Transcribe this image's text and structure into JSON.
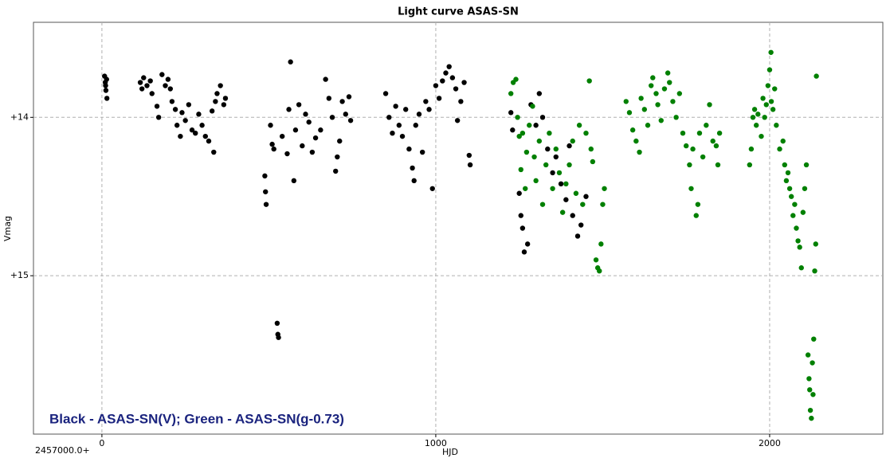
{
  "chart_data": {
    "type": "scatter",
    "title": "Light curve ASAS-SN",
    "x_label": "HJD",
    "y_label": "Vmag",
    "x_offset_label": "2457000.0+",
    "annotation": "Black - ASAS-SN(V); Green - ASAS-SN(g-0.73)",
    "xlim": [
      -205,
      2339
    ],
    "xticks": [
      0,
      1000,
      2000
    ],
    "ylim": [
      13.4,
      16.0
    ],
    "y_reversed": true,
    "yticks": [
      {
        "value": 14,
        "label": "+14"
      },
      {
        "value": 15,
        "label": "+15"
      }
    ],
    "grid": true,
    "series": [
      {
        "color": "#000000",
        "x": [
          8,
          10,
          12,
          15,
          14,
          11,
          115,
          120,
          125,
          135,
          145,
          150,
          165,
          170,
          180,
          190,
          198,
          205,
          210,
          220,
          225,
          235,
          240,
          250,
          260,
          270,
          280,
          290,
          300,
          310,
          320,
          330,
          335,
          340,
          345,
          355,
          365,
          370,
          488,
          490,
          492,
          505,
          510,
          515,
          525,
          527,
          529,
          540,
          555,
          560,
          565,
          575,
          580,
          590,
          600,
          610,
          620,
          630,
          640,
          655,
          670,
          680,
          690,
          700,
          705,
          712,
          720,
          730,
          740,
          745,
          850,
          860,
          870,
          880,
          890,
          900,
          910,
          920,
          930,
          935,
          940,
          950,
          960,
          970,
          980,
          990,
          1000,
          1010,
          1020,
          1030,
          1040,
          1050,
          1060,
          1065,
          1075,
          1085,
          1100,
          1103,
          1225,
          1230,
          1250,
          1255,
          1260,
          1265,
          1275,
          1285,
          1300,
          1310,
          1320,
          1335,
          1350,
          1360,
          1375,
          1390,
          1400,
          1410,
          1425,
          1435,
          1450
        ],
        "values": [
          13.74,
          13.78,
          13.83,
          13.88,
          13.76,
          13.8,
          13.78,
          13.82,
          13.75,
          13.8,
          13.77,
          13.85,
          13.93,
          14.0,
          13.73,
          13.8,
          13.76,
          13.82,
          13.9,
          13.95,
          14.05,
          14.12,
          13.97,
          14.02,
          13.92,
          14.08,
          14.1,
          13.98,
          14.05,
          14.12,
          14.15,
          13.96,
          14.22,
          13.9,
          13.85,
          13.8,
          13.92,
          13.88,
          14.37,
          14.47,
          14.55,
          14.05,
          14.17,
          14.2,
          15.3,
          15.37,
          15.39,
          14.12,
          14.23,
          13.95,
          13.65,
          14.4,
          14.08,
          13.92,
          14.18,
          13.98,
          14.03,
          14.22,
          14.13,
          14.08,
          13.76,
          13.88,
          14.0,
          14.34,
          14.25,
          14.15,
          13.9,
          13.98,
          13.87,
          14.02,
          13.85,
          14.0,
          14.1,
          13.93,
          14.05,
          14.12,
          13.95,
          14.2,
          14.32,
          14.4,
          14.05,
          13.98,
          14.22,
          13.9,
          13.95,
          14.45,
          13.8,
          13.88,
          13.77,
          13.72,
          13.68,
          13.75,
          13.82,
          14.02,
          13.9,
          13.78,
          14.24,
          14.3,
          13.97,
          14.08,
          14.48,
          14.62,
          14.7,
          14.85,
          14.8,
          13.92,
          14.05,
          13.85,
          14.0,
          14.2,
          14.35,
          14.25,
          14.42,
          14.52,
          14.18,
          14.62,
          14.75,
          14.68,
          14.5
        ]
      },
      {
        "color": "#008000",
        "x": [
          1225,
          1232,
          1240,
          1245,
          1250,
          1255,
          1260,
          1268,
          1272,
          1280,
          1290,
          1295,
          1300,
          1310,
          1320,
          1330,
          1340,
          1350,
          1360,
          1370,
          1380,
          1390,
          1400,
          1410,
          1420,
          1430,
          1440,
          1450,
          1460,
          1465,
          1470,
          1480,
          1485,
          1490,
          1495,
          1500,
          1505,
          1570,
          1580,
          1590,
          1600,
          1610,
          1615,
          1625,
          1635,
          1645,
          1650,
          1660,
          1665,
          1675,
          1685,
          1695,
          1700,
          1710,
          1720,
          1730,
          1740,
          1750,
          1760,
          1765,
          1770,
          1780,
          1785,
          1790,
          1800,
          1810,
          1820,
          1830,
          1840,
          1845,
          1850,
          1940,
          1945,
          1950,
          1955,
          1960,
          1965,
          1975,
          1980,
          1985,
          1990,
          1995,
          2000,
          2004,
          2005,
          2010,
          2015,
          2020,
          2030,
          2040,
          2045,
          2050,
          2055,
          2060,
          2065,
          2070,
          2075,
          2080,
          2085,
          2090,
          2095,
          2100,
          2105,
          2110,
          2115,
          2118,
          2120,
          2122,
          2125,
          2128,
          2130,
          2132,
          2135,
          2138,
          2140
        ],
        "values": [
          13.85,
          13.78,
          13.76,
          14.0,
          14.12,
          14.33,
          14.1,
          14.45,
          14.22,
          14.05,
          13.93,
          14.25,
          14.4,
          14.15,
          14.55,
          14.3,
          14.1,
          14.45,
          14.2,
          14.35,
          14.6,
          14.42,
          14.3,
          14.15,
          14.48,
          14.05,
          14.55,
          14.1,
          13.77,
          14.2,
          14.28,
          14.9,
          14.95,
          14.97,
          14.8,
          14.55,
          14.45,
          13.9,
          13.97,
          14.08,
          14.15,
          14.22,
          13.88,
          13.95,
          14.05,
          13.8,
          13.75,
          13.85,
          13.92,
          14.02,
          13.82,
          13.72,
          13.78,
          13.9,
          14.0,
          13.85,
          14.1,
          14.18,
          14.3,
          14.45,
          14.2,
          14.62,
          14.55,
          14.1,
          14.25,
          14.05,
          13.92,
          14.15,
          14.18,
          14.3,
          14.1,
          14.3,
          14.2,
          14.0,
          13.95,
          14.05,
          13.98,
          14.12,
          13.88,
          14.0,
          13.92,
          13.8,
          13.7,
          13.59,
          13.9,
          13.95,
          13.82,
          14.05,
          14.2,
          14.15,
          14.3,
          14.4,
          14.35,
          14.45,
          14.5,
          14.62,
          14.55,
          14.7,
          14.78,
          14.82,
          14.95,
          14.6,
          14.45,
          14.3,
          15.5,
          15.65,
          15.72,
          15.85,
          15.9,
          15.55,
          15.75,
          15.4,
          14.97,
          14.8,
          13.74
        ]
      }
    ]
  }
}
